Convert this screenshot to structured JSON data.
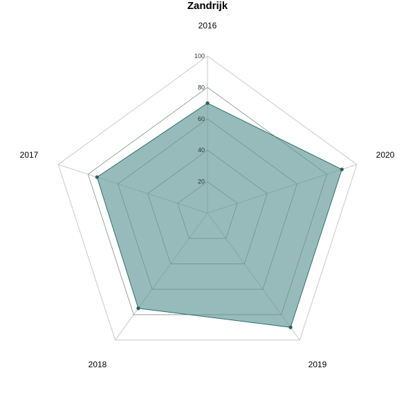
{
  "chart_data": {
    "type": "radar",
    "title": "Zandrijk",
    "categories": [
      "2016",
      "2020",
      "2019",
      "2018",
      "2017"
    ],
    "series": [
      {
        "values": [
          70,
          90,
          90,
          75,
          74
        ]
      }
    ],
    "rlim": [
      0,
      100
    ],
    "ticks": [
      "20",
      "40",
      "60",
      "80",
      "100"
    ],
    "grid": true,
    "colors": {
      "fill": "#5f9696",
      "stroke": "#2e6e6e",
      "point": "#2a5f60"
    }
  }
}
